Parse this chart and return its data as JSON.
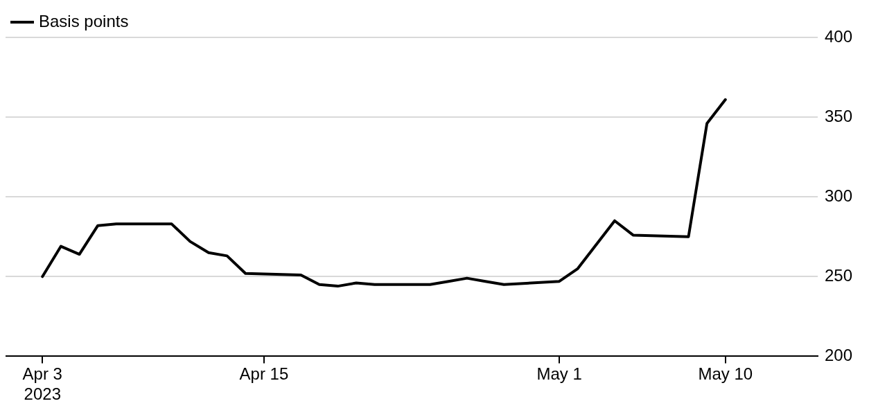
{
  "chart_data": {
    "type": "line",
    "x": [
      "2023-04-03",
      "2023-04-04",
      "2023-04-05",
      "2023-04-06",
      "2023-04-07",
      "2023-04-10",
      "2023-04-11",
      "2023-04-12",
      "2023-04-13",
      "2023-04-14",
      "2023-04-17",
      "2023-04-18",
      "2023-04-19",
      "2023-04-20",
      "2023-04-21",
      "2023-04-24",
      "2023-04-25",
      "2023-04-26",
      "2023-04-27",
      "2023-04-28",
      "2023-05-01",
      "2023-05-02",
      "2023-05-03",
      "2023-05-04",
      "2023-05-05",
      "2023-05-08",
      "2023-05-09",
      "2023-05-10"
    ],
    "series": [
      {
        "name": "Basis points",
        "color": "#000000",
        "values": [
          250,
          269,
          264,
          282,
          283,
          283,
          272,
          265,
          263,
          252,
          251,
          245,
          244,
          246,
          245,
          245,
          247,
          249,
          247,
          245,
          247,
          255,
          270,
          285,
          276,
          275,
          346,
          361
        ]
      }
    ],
    "xlim": [
      "2023-04-01",
      "2023-05-15"
    ],
    "xticks": [
      {
        "value": "2023-04-03",
        "label": "Apr 3\n2023"
      },
      {
        "value": "2023-04-15",
        "label": "Apr 15"
      },
      {
        "value": "2023-05-01",
        "label": "May 1"
      },
      {
        "value": "2023-05-10",
        "label": "May 10"
      }
    ],
    "ylim": [
      200,
      400
    ],
    "yticks": [
      200,
      250,
      300,
      350,
      400
    ],
    "grid": "y",
    "legend": "top left",
    "marker": "none",
    "line_style": "solid"
  }
}
